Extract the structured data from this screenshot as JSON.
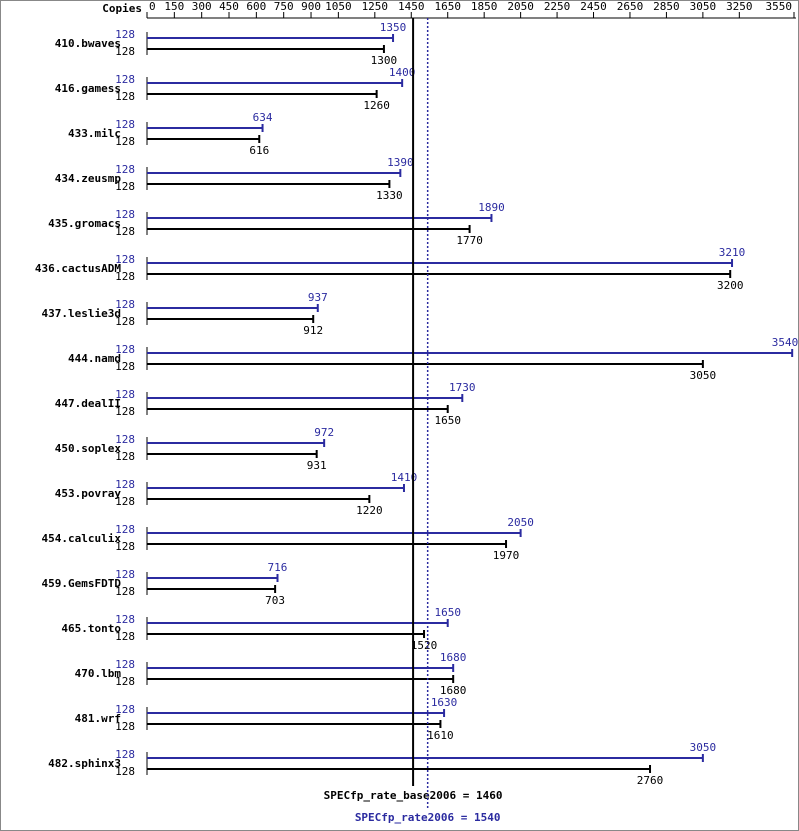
{
  "chart_data": {
    "type": "spec-rate",
    "axis_label": "Copies",
    "categories": [
      "410.bwaves",
      "416.gamess",
      "433.milc",
      "434.zeusmp",
      "435.gromacs",
      "436.cactusADM",
      "437.leslie3d",
      "444.namd",
      "447.dealII",
      "450.soplex",
      "453.povray",
      "454.calculix",
      "459.GemsFDTD",
      "465.tonto",
      "470.lbm",
      "481.wrf",
      "482.sphinx3"
    ],
    "series": [
      {
        "color": "#2b2ba0",
        "copies": [
          "128",
          "128",
          "128",
          "128",
          "128",
          "128",
          "128",
          "128",
          "128",
          "128",
          "128",
          "128",
          "128",
          "128",
          "128",
          "128",
          "128"
        ],
        "values": [
          1350,
          1400,
          634,
          1390,
          1890,
          3210,
          937,
          3540,
          1730,
          972,
          1410,
          2050,
          716,
          1650,
          1680,
          1630,
          3050
        ]
      },
      {
        "color": "#000000",
        "copies": [
          "128",
          "128",
          "128",
          "128",
          "128",
          "128",
          "128",
          "128",
          "128",
          "128",
          "128",
          "128",
          "128",
          "128",
          "128",
          "128",
          "128"
        ],
        "values": [
          1300,
          1260,
          616,
          1330,
          1770,
          3200,
          912,
          3050,
          1650,
          931,
          1220,
          1970,
          703,
          1520,
          1680,
          1610,
          2760
        ]
      }
    ],
    "summary": [
      {
        "value": 1460,
        "label": "SPECfp_rate_base2006 = 1460",
        "color": "#000000"
      },
      {
        "value": 1540,
        "label": "SPECfp_rate2006 = 1540",
        "color": "#2b2ba0"
      }
    ],
    "xlim": [
      0,
      3550
    ],
    "xticks": [
      0,
      150,
      300,
      450,
      600,
      750,
      900,
      1050,
      1250,
      1450,
      1650,
      1850,
      2050,
      2250,
      2450,
      2650,
      2850,
      3050,
      3250,
      3550
    ]
  }
}
